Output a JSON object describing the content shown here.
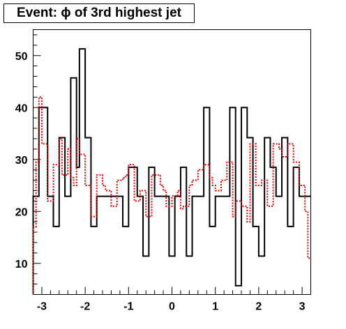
{
  "chart_data": {
    "type": "histogram",
    "title": "Event: ϕ of 3rd highest jet",
    "xlabel": "",
    "ylabel": "",
    "xlim": [
      -3.2,
      3.2
    ],
    "ylim": [
      4,
      55
    ],
    "x_ticks": [
      -3,
      -2,
      -1,
      0,
      1,
      2,
      3
    ],
    "x_tick_labels": [
      "-3",
      "-2",
      "-1",
      "0",
      "1",
      "2",
      "3"
    ],
    "y_ticks": [
      10,
      20,
      30,
      40,
      50
    ],
    "y_tick_labels": [
      "10",
      "20",
      "30",
      "40",
      "50"
    ],
    "bin_edges": [
      -3.2,
      -3.1333,
      -3.0667,
      -3.0,
      -2.9333,
      -2.8667,
      -2.8,
      -2.7333,
      -2.6667,
      -2.6,
      -2.5333,
      -2.4667,
      -2.4,
      -2.3333,
      -2.2667,
      -2.2,
      -2.1333,
      -2.0667,
      -2.0,
      -1.9333,
      -1.8667,
      -1.8,
      -1.7333,
      -1.6667,
      -1.6,
      -1.5333,
      -1.4667,
      -1.4,
      -1.3333,
      -1.2667,
      -1.2,
      -1.1333,
      -1.0667,
      -1.0,
      -0.9333,
      -0.8667,
      -0.8,
      -0.7333,
      -0.6667,
      -0.6,
      -0.5333,
      -0.4667,
      -0.4,
      -0.3333,
      -0.2667,
      -0.2,
      -0.1333,
      -0.0667,
      0.0,
      0.0667,
      0.1333,
      0.2,
      0.2667,
      0.3333,
      0.4,
      0.4667,
      0.5333,
      0.6,
      0.6667,
      0.7333,
      0.8,
      0.8667,
      0.9333,
      1.0,
      1.0667,
      1.1333,
      1.2,
      1.2667,
      1.3333,
      1.4,
      1.4667,
      1.5333,
      1.6,
      1.6667,
      1.7333,
      1.8,
      1.8667,
      1.9333,
      2.0,
      2.0667,
      2.1333,
      2.2,
      2.2667,
      2.3333,
      2.4,
      2.4667,
      2.5333,
      2.6,
      2.6667,
      2.7333,
      2.8,
      2.8667,
      2.9333,
      3.0,
      3.0667,
      3.1333,
      3.2
    ],
    "series": [
      {
        "color": "#000000",
        "style": "solid",
        "values": [
          22.9,
          22.9,
          40,
          40,
          40,
          22.9,
          22.9,
          17.1,
          17.1,
          34.2,
          34.2,
          22.9,
          22.9,
          45.7,
          45.7,
          28.5,
          51.3,
          51.3,
          34.2,
          34.2,
          17.1,
          17.1,
          22.9,
          22.9,
          22.9,
          22.9,
          22.9,
          22.9,
          22.9,
          22.9,
          22.9,
          17.1,
          17.1,
          28.5,
          28.5,
          28.5,
          22.9,
          22.9,
          11.4,
          11.4,
          28.5,
          28.5,
          22.9,
          22.9,
          22.9,
          22.9,
          22.9,
          11.4,
          11.4,
          22.9,
          22.9,
          28.5,
          28.5,
          11.4,
          11.4,
          22.9,
          22.9,
          22.9,
          22.9,
          40,
          40,
          17.1,
          17.1,
          22.9,
          22.9,
          22.9,
          22.9,
          22.9,
          40,
          40,
          5.7,
          5.7,
          40,
          40,
          34.2,
          34.2,
          17.1,
          17.1,
          11.4,
          11.4,
          34.2,
          34.2,
          28.5,
          28.5,
          22.9,
          22.9,
          34.2,
          34.2,
          17.1,
          17.1,
          28.5,
          28.5,
          22.9,
          22.9,
          22.9,
          22.9
        ]
      },
      {
        "color": "#e00000",
        "style": "dotted",
        "values": [
          17.0,
          29.5,
          42.0,
          33.0,
          33.0,
          22.0,
          22.0,
          29.0,
          29.0,
          34.0,
          27.0,
          27.0,
          32.0,
          26.5,
          25.0,
          34.0,
          31.0,
          31.0,
          25.0,
          25.0,
          19.0,
          19.0,
          27.0,
          27.0,
          25.0,
          24.0,
          24.0,
          21.0,
          21.0,
          26.0,
          26.0,
          26.5,
          27.0,
          29.0,
          29.0,
          22.0,
          22.0,
          24.0,
          24.0,
          19.0,
          19.0,
          27.0,
          27.0,
          27.0,
          25.0,
          24.0,
          21.0,
          21.0,
          23.0,
          23.0,
          24.0,
          20.5,
          21.0,
          21.0,
          25.0,
          26.0,
          26.0,
          28.0,
          28.0,
          29.0,
          29.0,
          26.5,
          25.0,
          24.0,
          24.0,
          26.0,
          26.0,
          29.5,
          29.5,
          19.0,
          22.0,
          22.0,
          21.0,
          21.0,
          18.0,
          33.0,
          33.0,
          25.0,
          25.0,
          26.0,
          26.0,
          21.0,
          21.0,
          33.0,
          33.0,
          32.0,
          30.5,
          30.5,
          33.0,
          33.0,
          29.5,
          29.5,
          25.0,
          25.0,
          20.0,
          11.0
        ]
      }
    ]
  }
}
